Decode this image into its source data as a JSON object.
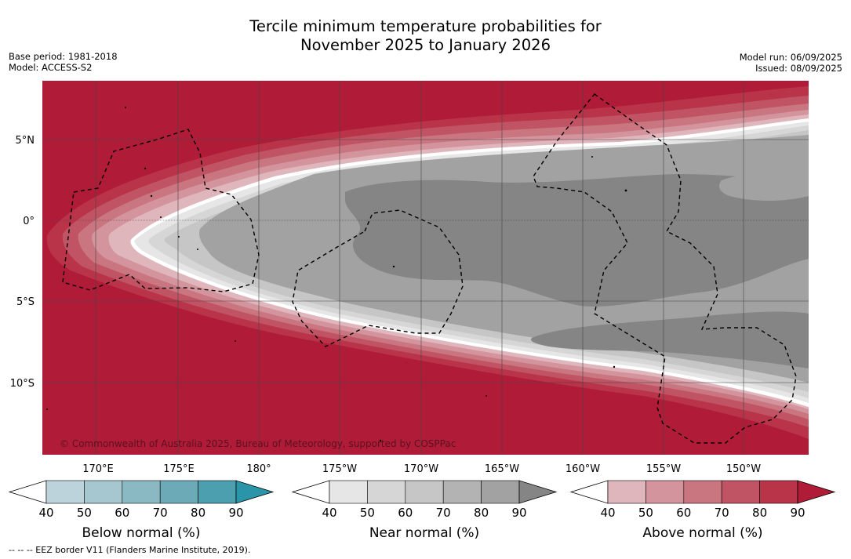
{
  "title_line1": "Tercile minimum temperature probabilities for",
  "title_line2": "November 2025 to January 2026",
  "meta_left": [
    "Base period: 1981-2018",
    "Model: ACCESS-S2"
  ],
  "meta_right": [
    "Model run: 06/09/2025",
    "Issued: 08/09/2025"
  ],
  "lat_labels": [
    "5°N",
    "0°",
    "5°S",
    "10°S"
  ],
  "lon_labels": [
    "170°E",
    "175°E",
    "180°",
    "175°W",
    "170°W",
    "165°W",
    "160°W",
    "155°W",
    "150°W"
  ],
  "copyright": "© Commonwealth of Australia 2025, Bureau of Meteorology, supported by COSPPac",
  "colorbars": [
    {
      "label": "Below normal (%)",
      "ticks": [
        "40",
        "50",
        "60",
        "70",
        "80",
        "90"
      ],
      "colors": [
        "#bcd3db",
        "#a6c7cf",
        "#8ab8c3",
        "#6daab8",
        "#4b9fae",
        "#2a94a8"
      ]
    },
    {
      "label": "Near normal (%)",
      "ticks": [
        "40",
        "50",
        "60",
        "70",
        "80",
        "90"
      ],
      "colors": [
        "#e6e6e6",
        "#d6d6d6",
        "#c6c6c6",
        "#b3b3b3",
        "#a2a2a2",
        "#858585"
      ]
    },
    {
      "label": "Above normal (%)",
      "ticks": [
        "40",
        "50",
        "60",
        "70",
        "80",
        "90"
      ],
      "colors": [
        "#e0b6bd",
        "#d4949d",
        "#c97681",
        "#c05464",
        "#b93349",
        "#b01c38"
      ]
    }
  ],
  "footnote": "-- -- -- EEZ border V11 (Flanders Marine Institute, 2019).",
  "colors": {
    "above_90": "#b01c38",
    "near_max": "#858585"
  }
}
